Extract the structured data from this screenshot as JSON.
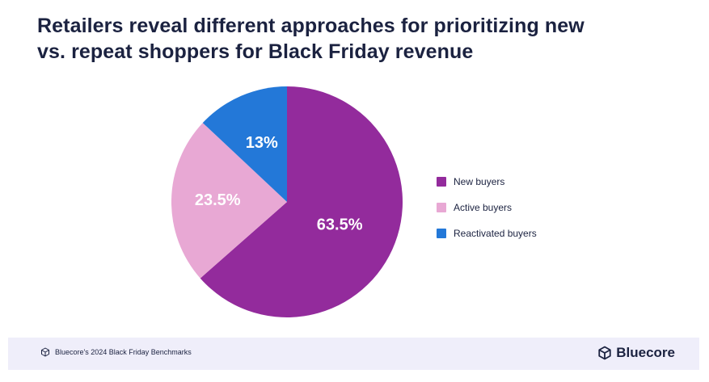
{
  "header": {
    "title_line1": "Retailers reveal different approaches for prioritizing new",
    "title_line2": "vs. repeat shoppers for Black Friday revenue"
  },
  "chart_data": {
    "type": "pie",
    "title": "Retailers reveal different approaches for prioritizing new vs. repeat shoppers for Black Friday revenue",
    "legend_position": "right",
    "slices": [
      {
        "name": "New buyers",
        "value": 63.5,
        "label": "63.5%",
        "color": "#932b9c"
      },
      {
        "name": "Active buyers",
        "value": 23.5,
        "label": "23.5%",
        "color": "#e8a8d4"
      },
      {
        "name": "Reactivated buyers",
        "value": 13,
        "label": "13%",
        "color": "#2378d8"
      }
    ]
  },
  "footer": {
    "source_text": "Bluecore's 2024 Black Friday Benchmarks",
    "brand_name": "Bluecore",
    "icon": "cube-icon"
  }
}
